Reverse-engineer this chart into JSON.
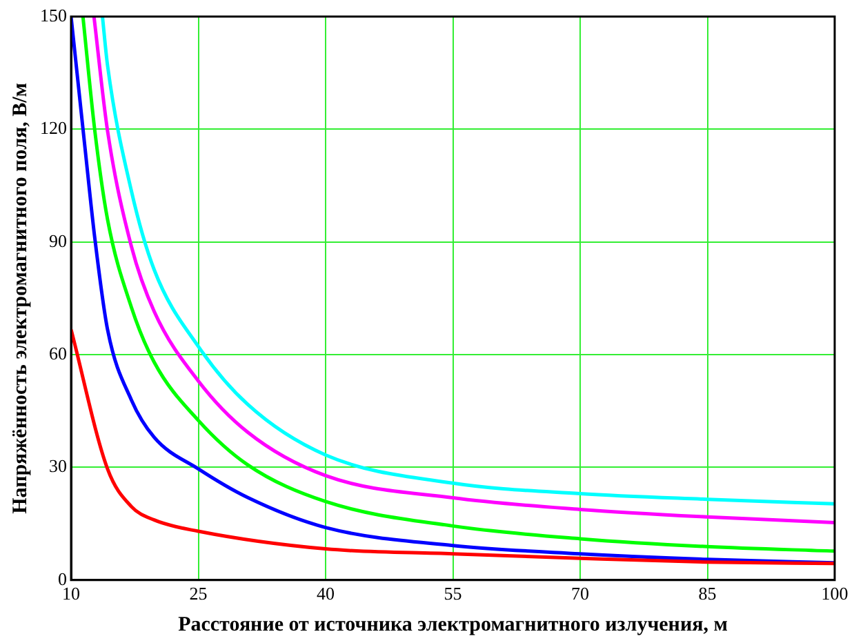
{
  "chart_data": {
    "type": "line",
    "xlabel": "Расстояние от источника электромагнитного излучения, м",
    "ylabel": "Напряжённость электромагнитного поля, В/м",
    "xlim": [
      10,
      100
    ],
    "xticks": [
      10,
      25,
      40,
      55,
      70,
      85,
      100
    ],
    "ylim": [
      0,
      150
    ],
    "yticks": [
      0,
      30,
      60,
      90,
      120,
      150
    ],
    "grid": true,
    "legend": false,
    "marker": "none",
    "line_style": "solid",
    "series": [
      {
        "color": "#ff0000",
        "x": [
          10,
          14.3,
          17.1,
          19.8,
          25,
          40,
          55,
          70,
          85,
          100
        ],
        "values": [
          66.7,
          29.6,
          19.6,
          16,
          13,
          8.3,
          7,
          5.8,
          4.8,
          4.4
        ]
      },
      {
        "color": "#0000ff",
        "x": [
          10,
          11.6,
          12.8,
          14.3,
          17.1,
          19.8,
          25,
          30.8,
          40,
          55,
          70,
          85,
          100
        ],
        "values": [
          150,
          116,
          91,
          66.7,
          48,
          38,
          29.6,
          22,
          14,
          9.2,
          7,
          5.5,
          4.6
        ]
      },
      {
        "color": "#00ff00",
        "x": [
          11.4,
          12.8,
          14.3,
          17.1,
          19.8,
          25,
          30.8,
          40,
          55,
          70,
          85,
          100
        ],
        "values": [
          150,
          119.6,
          96,
          72.7,
          58,
          42.5,
          30.7,
          20.9,
          14.4,
          11,
          8.9,
          7.7
        ]
      },
      {
        "color": "#ff00ff",
        "x": [
          12.7,
          14.3,
          17.1,
          19.8,
          25,
          30.8,
          40,
          55,
          70,
          85,
          100
        ],
        "values": [
          150,
          119.6,
          88.9,
          71.5,
          53,
          39.4,
          27.8,
          21.9,
          18.8,
          16.8,
          15.3
        ]
      },
      {
        "color": "#00ffff",
        "x": [
          13.7,
          14.3,
          17.1,
          19.8,
          25,
          30.8,
          40,
          55,
          70,
          85,
          100
        ],
        "values": [
          150,
          137,
          103.7,
          82.6,
          62.2,
          46.8,
          33.3,
          25.8,
          23,
          21.5,
          20.3
        ]
      }
    ]
  }
}
